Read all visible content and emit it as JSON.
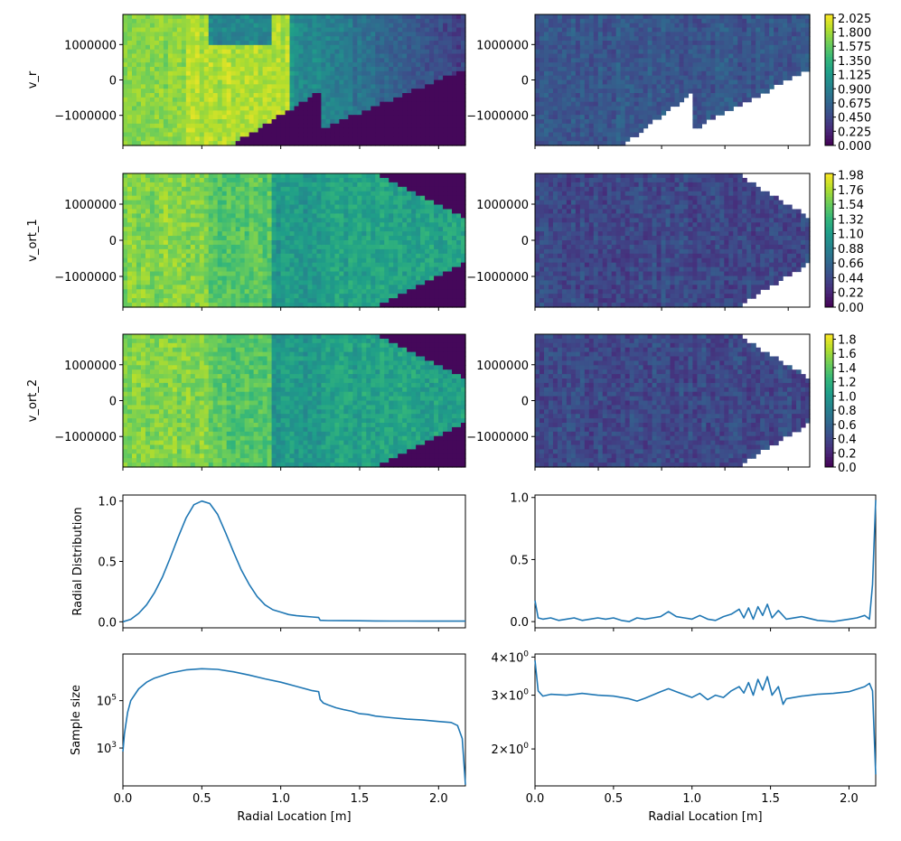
{
  "chart_data": [
    {
      "type": "heatmap",
      "panel": "v_r",
      "ylabel": "v_r",
      "ytick_labels": [
        "1000000",
        "0",
        "−1000000"
      ],
      "ytick_values": [
        1000000,
        0,
        -1000000
      ],
      "ylim": [
        -1850000,
        1850000
      ],
      "xlim": [
        0,
        2.17
      ]
    },
    {
      "type": "heatmap",
      "panel": "v_r_second",
      "ytick_labels": [
        "1000000",
        "0",
        "−1000000"
      ],
      "ytick_values": [
        1000000,
        0,
        -1000000
      ],
      "colorbar_ticks": [
        "2.025",
        "1.800",
        "1.575",
        "1.350",
        "1.125",
        "0.900",
        "0.675",
        "0.450",
        "0.225",
        "0.000"
      ],
      "colorbar_range": [
        0,
        2.08
      ]
    },
    {
      "type": "heatmap",
      "panel": "v_ort_1",
      "ylabel": "v_ort_1",
      "ytick_labels": [
        "1000000",
        "0",
        "−1000000"
      ],
      "ytick_values": [
        1000000,
        0,
        -1000000
      ]
    },
    {
      "type": "heatmap",
      "panel": "v_ort_1_second",
      "ytick_labels": [
        "1000000",
        "0",
        "−1000000"
      ],
      "ytick_values": [
        1000000,
        0,
        -1000000
      ],
      "colorbar_ticks": [
        "1.98",
        "1.76",
        "1.54",
        "1.32",
        "1.10",
        "0.88",
        "0.66",
        "0.44",
        "0.22",
        "0.00"
      ],
      "colorbar_range": [
        0,
        2.0
      ]
    },
    {
      "type": "heatmap",
      "panel": "v_ort_2",
      "ylabel": "v_ort_2",
      "ytick_labels": [
        "1000000",
        "0",
        "−1000000"
      ],
      "ytick_values": [
        1000000,
        0,
        -1000000
      ]
    },
    {
      "type": "heatmap",
      "panel": "v_ort_2_second",
      "ytick_labels": [
        "1000000",
        "0",
        "−1000000"
      ],
      "ytick_values": [
        1000000,
        0,
        -1000000
      ],
      "colorbar_ticks": [
        "1.8",
        "1.6",
        "1.4",
        "1.2",
        "1.0",
        "0.8",
        "0.6",
        "0.4",
        "0.2",
        "0.0"
      ],
      "colorbar_range": [
        0,
        1.87
      ]
    },
    {
      "type": "line",
      "panel": "radial_distribution",
      "ylabel": "Radial Distribution",
      "xlim": [
        0,
        2.17
      ],
      "ylim": [
        -0.05,
        1.05
      ],
      "ytick_labels": [
        "1.0",
        "0.5",
        "0.0"
      ],
      "ytick_values": [
        1.0,
        0.5,
        0.0
      ],
      "x": [
        0,
        0.05,
        0.1,
        0.15,
        0.2,
        0.25,
        0.3,
        0.35,
        0.4,
        0.45,
        0.5,
        0.55,
        0.6,
        0.65,
        0.7,
        0.75,
        0.8,
        0.85,
        0.9,
        0.95,
        1.0,
        1.05,
        1.1,
        1.15,
        1.2,
        1.24,
        1.25,
        1.3,
        1.4,
        1.5,
        1.6,
        1.7,
        1.8,
        1.9,
        2.0,
        2.1,
        2.17
      ],
      "y": [
        0.0,
        0.02,
        0.07,
        0.14,
        0.24,
        0.37,
        0.53,
        0.7,
        0.86,
        0.97,
        1.0,
        0.98,
        0.89,
        0.74,
        0.58,
        0.43,
        0.31,
        0.21,
        0.14,
        0.1,
        0.08,
        0.06,
        0.05,
        0.045,
        0.04,
        0.035,
        0.012,
        0.01,
        0.009,
        0.008,
        0.007,
        0.006,
        0.006,
        0.005,
        0.005,
        0.005,
        0.005
      ]
    },
    {
      "type": "line",
      "panel": "radial_distribution_second",
      "xlim": [
        0,
        2.17
      ],
      "ylim": [
        -0.05,
        1.02
      ],
      "ytick_labels": [
        "1.0",
        "0.5",
        "0.0"
      ],
      "ytick_values": [
        1.0,
        0.5,
        0.0
      ],
      "x": [
        0,
        0.02,
        0.05,
        0.1,
        0.15,
        0.2,
        0.25,
        0.3,
        0.35,
        0.4,
        0.45,
        0.5,
        0.55,
        0.6,
        0.65,
        0.7,
        0.75,
        0.8,
        0.85,
        0.9,
        0.95,
        1.0,
        1.05,
        1.1,
        1.15,
        1.2,
        1.25,
        1.3,
        1.33,
        1.36,
        1.39,
        1.42,
        1.45,
        1.48,
        1.51,
        1.55,
        1.6,
        1.7,
        1.8,
        1.9,
        2.0,
        2.05,
        2.1,
        2.13,
        2.15,
        2.17
      ],
      "y": [
        0.17,
        0.03,
        0.02,
        0.03,
        0.01,
        0.02,
        0.03,
        0.01,
        0.02,
        0.03,
        0.02,
        0.03,
        0.01,
        0.0,
        0.03,
        0.02,
        0.03,
        0.04,
        0.08,
        0.04,
        0.03,
        0.02,
        0.05,
        0.02,
        0.01,
        0.04,
        0.06,
        0.1,
        0.03,
        0.11,
        0.02,
        0.12,
        0.05,
        0.14,
        0.03,
        0.09,
        0.02,
        0.04,
        0.01,
        0.0,
        0.02,
        0.03,
        0.05,
        0.02,
        0.3,
        0.98
      ]
    },
    {
      "type": "line",
      "panel": "sample_size",
      "ylabel": "Sample size",
      "yscale": "log",
      "xlabel": "Radial Location [m]",
      "xlim": [
        0,
        2.17
      ],
      "ylim_log10": [
        1.4,
        6.97
      ],
      "ytick_labels": [
        "10^5",
        "10^3"
      ],
      "ytick_values": [
        100000,
        1000
      ],
      "xtick_labels": [
        "0.0",
        "0.5",
        "1.0",
        "1.5",
        "2.0"
      ],
      "xtick_values": [
        0,
        0.5,
        1.0,
        1.5,
        2.0
      ],
      "x": [
        0,
        0.01,
        0.03,
        0.05,
        0.1,
        0.15,
        0.2,
        0.3,
        0.4,
        0.5,
        0.6,
        0.7,
        0.8,
        0.9,
        1.0,
        1.1,
        1.2,
        1.24,
        1.25,
        1.27,
        1.3,
        1.35,
        1.4,
        1.45,
        1.5,
        1.55,
        1.6,
        1.7,
        1.8,
        1.9,
        2.0,
        2.08,
        2.12,
        2.15,
        2.17
      ],
      "log10_y": [
        2.85,
        3.6,
        4.5,
        5.0,
        5.5,
        5.78,
        5.95,
        6.17,
        6.3,
        6.35,
        6.32,
        6.22,
        6.08,
        5.92,
        5.78,
        5.6,
        5.42,
        5.38,
        5.05,
        4.9,
        4.82,
        4.7,
        4.62,
        4.55,
        4.45,
        4.42,
        4.35,
        4.28,
        4.22,
        4.18,
        4.12,
        4.08,
        3.95,
        3.4,
        1.45
      ]
    },
    {
      "type": "line",
      "panel": "sample_size_second",
      "yscale": "log",
      "xlabel": "Radial Location [m]",
      "xlim": [
        0,
        2.17
      ],
      "ylim_log10": [
        0.18,
        0.612
      ],
      "ytick_labels": [
        "4×10^0",
        "3×10^0",
        "2×10^0"
      ],
      "ytick_values": [
        4,
        3,
        2
      ],
      "xtick_labels": [
        "0.0",
        "0.5",
        "1.0",
        "1.5",
        "2.0"
      ],
      "xtick_values": [
        0,
        0.5,
        1.0,
        1.5,
        2.0
      ],
      "x": [
        0,
        0.02,
        0.05,
        0.1,
        0.2,
        0.3,
        0.4,
        0.5,
        0.6,
        0.65,
        0.7,
        0.8,
        0.85,
        0.9,
        1.0,
        1.05,
        1.1,
        1.15,
        1.2,
        1.25,
        1.3,
        1.33,
        1.36,
        1.39,
        1.42,
        1.45,
        1.48,
        1.51,
        1.55,
        1.58,
        1.6,
        1.7,
        1.8,
        1.9,
        2.0,
        2.1,
        2.13,
        2.15,
        2.17
      ],
      "y": [
        3.9,
        3.1,
        2.98,
        3.02,
        3.0,
        3.04,
        3.0,
        2.98,
        2.92,
        2.87,
        2.93,
        3.08,
        3.15,
        3.08,
        2.95,
        3.04,
        2.9,
        3.0,
        2.95,
        3.1,
        3.2,
        3.05,
        3.3,
        3.0,
        3.38,
        3.12,
        3.45,
        3.0,
        3.2,
        2.8,
        2.92,
        2.98,
        3.02,
        3.04,
        3.08,
        3.2,
        3.28,
        3.1,
        1.65
      ]
    }
  ]
}
